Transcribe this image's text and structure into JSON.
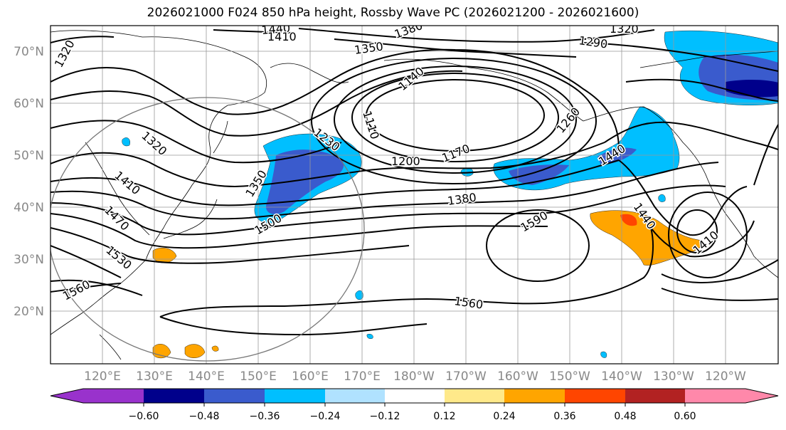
{
  "title": "2026021000 F024 850 hPa height, Rossby Wave PC (2026021200 - 2026021600)",
  "lat_labels": [
    "70°N",
    "60°N",
    "50°N",
    "40°N",
    "30°N",
    "20°N"
  ],
  "lon_labels": [
    "120°E",
    "130°E",
    "140°E",
    "150°E",
    "160°E",
    "170°E",
    "180°W",
    "170°W",
    "160°W",
    "150°W",
    "140°W",
    "130°W",
    "120°W"
  ],
  "contour_labels": [
    "1440",
    "1410",
    "1380",
    "1350",
    "1320",
    "1290",
    "1320",
    "1320",
    "1410",
    "1470",
    "1530",
    "1560",
    "1140",
    "1110",
    "1230",
    "1350",
    "1500",
    "1200",
    "1170",
    "1260",
    "1380",
    "1440",
    "1590",
    "1560",
    "1440",
    "1410"
  ],
  "colorbar": {
    "ticks": [
      "−0.60",
      "−0.48",
      "−0.36",
      "−0.24",
      "−0.12",
      "0.12",
      "0.24",
      "0.36",
      "0.48",
      "0.60"
    ],
    "colors": [
      "#9932cc",
      "#00008b",
      "#3a5bcd",
      "#00bfff",
      "#b0e2ff",
      "#ffffff",
      "#ffe98a",
      "#ffa500",
      "#ff4500",
      "#b22222",
      "#ff88aa"
    ]
  },
  "shading": {
    "negative_strong": "#3a5bcd",
    "negative_mid": "#00bfff",
    "negative_darkest": "#00008b",
    "positive_mid": "#ffa500",
    "positive_strong": "#ff4500"
  }
}
